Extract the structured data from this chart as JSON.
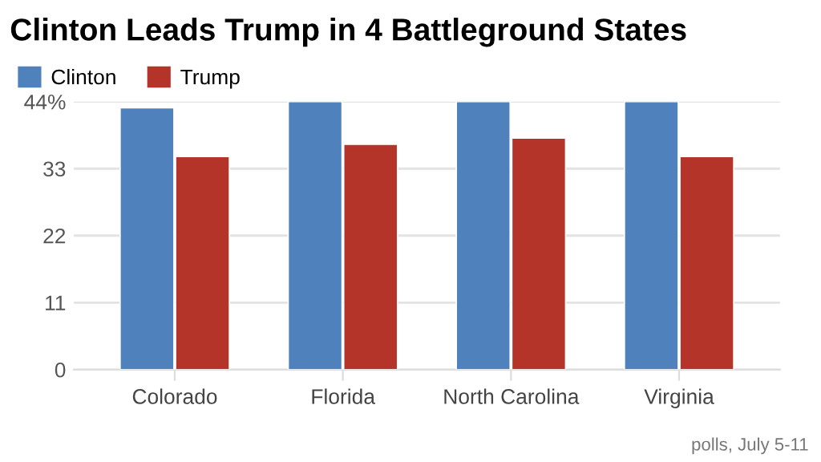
{
  "chart_data": {
    "type": "bar",
    "title": "Clinton Leads Trump in 4 Battleground States",
    "categories": [
      "Colorado",
      "Florida",
      "North Carolina",
      "Virginia"
    ],
    "series": [
      {
        "name": "Clinton",
        "color": "#4f81bd",
        "values": [
          43,
          44,
          44,
          44
        ]
      },
      {
        "name": "Trump",
        "color": "#b5342a",
        "values": [
          35,
          37,
          38,
          35
        ]
      }
    ],
    "ylim": [
      0,
      44
    ],
    "yticks": [
      0,
      11,
      22,
      33,
      {
        "value": 44,
        "label": "44%"
      }
    ],
    "grid": "y",
    "legend": "top left",
    "annotations": [
      "polls, July 5-11"
    ]
  }
}
